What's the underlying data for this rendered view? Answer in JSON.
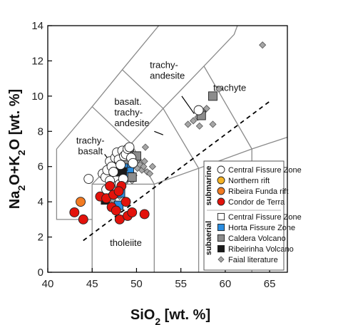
{
  "chart_data": {
    "type": "scatter",
    "x_axis": {
      "label_parts": [
        {
          "t": "SiO"
        },
        {
          "t": "2",
          "sub": true
        },
        {
          "t": " [wt. %]"
        }
      ],
      "range": [
        40,
        67
      ],
      "ticks": [
        40,
        45,
        50,
        55,
        60,
        65
      ]
    },
    "y_axis": {
      "label_parts": [
        {
          "t": "Na"
        },
        {
          "t": "2",
          "sub": true
        },
        {
          "t": "O+K"
        },
        {
          "t": "2",
          "sub": true
        },
        {
          "t": "O [wt. %]"
        }
      ],
      "range": [
        0,
        14
      ],
      "ticks": [
        0,
        2,
        4,
        6,
        8,
        10,
        12,
        14
      ]
    },
    "tas_field_lines": [
      [
        [
          41,
          7
        ],
        [
          41,
          3
        ],
        [
          45,
          3
        ]
      ],
      [
        [
          45,
          0
        ],
        [
          45,
          5
        ],
        [
          52,
          5
        ],
        [
          52,
          0
        ]
      ],
      [
        [
          45,
          5
        ],
        [
          49.4,
          7.3
        ],
        [
          53,
          9.3
        ],
        [
          57.6,
          11.7
        ],
        [
          61,
          13.5
        ],
        [
          63,
          16.2
        ]
      ],
      [
        [
          49.4,
          7.3
        ],
        [
          52,
          5
        ]
      ],
      [
        [
          53,
          9.3
        ],
        [
          57,
          5.9
        ],
        [
          63,
          7
        ],
        [
          69,
          8
        ]
      ],
      [
        [
          57.6,
          11.7
        ],
        [
          63,
          7
        ]
      ],
      [
        [
          52,
          5
        ],
        [
          57,
          5.9
        ],
        [
          57,
          0
        ]
      ],
      [
        [
          63,
          7
        ],
        [
          63,
          0
        ]
      ],
      [
        [
          41,
          7
        ],
        [
          45,
          9.4
        ],
        [
          48.4,
          11.5
        ],
        [
          52.5,
          14
        ]
      ],
      [
        [
          45,
          9.4
        ],
        [
          49.4,
          7.3
        ]
      ],
      [
        [
          48.4,
          11.5
        ],
        [
          53,
          9.3
        ]
      ]
    ],
    "alkaline_divide": [
      [
        44,
        1.8
      ],
      [
        65,
        9.7
      ]
    ],
    "field_labels": [
      {
        "lines": [
          "trachyte"
        ],
        "x": 60.5,
        "y": 10.3,
        "anchor": "middle"
      },
      {
        "lines": [
          "trachy-",
          "andesite"
        ],
        "x": 51.5,
        "y": 11.6,
        "anchor": "start"
      },
      {
        "lines": [
          "basalt.",
          "trachy-",
          "andesite"
        ],
        "x": 47.5,
        "y": 9.5,
        "anchor": "start"
      },
      {
        "lines": [
          "trachy-",
          "basalt"
        ],
        "x": 44.8,
        "y": 7.3,
        "anchor": "middle"
      },
      {
        "lines": [
          "tholeiite"
        ],
        "x": 48.8,
        "y": 1.5,
        "anchor": "middle"
      }
    ],
    "field_label_pointers": [
      [
        [
          55.1,
          10.0
        ],
        [
          56.5,
          9.0
        ]
      ],
      [
        [
          52.0,
          8.0
        ],
        [
          53.0,
          7.8
        ]
      ],
      [
        [
          46.4,
          6.7
        ],
        [
          47.3,
          6.1
        ]
      ]
    ],
    "series": [
      {
        "name": "Central Fissure Zone",
        "group": "submarine",
        "marker": "circle",
        "color": "#ffffff",
        "points": [
          [
            44.6,
            5.3
          ],
          [
            46.2,
            5.6
          ],
          [
            46.5,
            5.4
          ],
          [
            46.7,
            5.8
          ],
          [
            47.0,
            6.3
          ],
          [
            47.2,
            6.0
          ],
          [
            47.4,
            5.7
          ],
          [
            47.6,
            6.5
          ],
          [
            47.8,
            6.8
          ],
          [
            48.0,
            6.4
          ],
          [
            48.2,
            6.1
          ],
          [
            48.4,
            6.9
          ],
          [
            48.6,
            6.6
          ],
          [
            48.8,
            6.7
          ],
          [
            49.0,
            7.0
          ],
          [
            49.2,
            7.1
          ],
          [
            49.4,
            6.5
          ],
          [
            49.6,
            6.2
          ],
          [
            47.4,
            4.9
          ],
          [
            47.8,
            4.6
          ],
          [
            48.1,
            5.0
          ],
          [
            47.0,
            5.2
          ],
          [
            46.6,
            4.7
          ],
          [
            48.5,
            5.3
          ],
          [
            57.0,
            9.2
          ]
        ]
      },
      {
        "name": "Northern rift",
        "group": "submarine",
        "marker": "circle",
        "color": "#f5b325",
        "points": []
      },
      {
        "name": "Ribeira Funda rift",
        "group": "submarine",
        "marker": "circle",
        "color": "#f27b22",
        "points": [
          [
            43.7,
            4.0
          ]
        ]
      },
      {
        "name": "Condor de Terra",
        "group": "submarine",
        "marker": "circle",
        "color": "#e3120b",
        "points": [
          [
            43.0,
            3.4
          ],
          [
            44.0,
            3.0
          ],
          [
            45.9,
            4.3
          ],
          [
            46.6,
            4.2
          ],
          [
            47.4,
            4.4
          ],
          [
            48.3,
            4.9
          ],
          [
            47.0,
            4.9
          ],
          [
            47.2,
            3.7
          ],
          [
            47.7,
            3.5
          ],
          [
            48.1,
            3.0
          ],
          [
            49.0,
            3.2
          ],
          [
            49.5,
            3.4
          ],
          [
            50.9,
            3.3
          ],
          [
            48.8,
            4.0
          ],
          [
            48.0,
            4.6
          ]
        ]
      },
      {
        "name": "Central Fissure Zone",
        "group": "subaerial",
        "marker": "square",
        "color": "#ffffff",
        "points": []
      },
      {
        "name": "Horta Fissure Zone",
        "group": "subaerial",
        "marker": "square",
        "color": "#2b8de0",
        "points": [
          [
            48.0,
            3.8
          ],
          [
            48.2,
            4.5
          ],
          [
            48.6,
            5.6
          ],
          [
            49.2,
            5.9
          ],
          [
            49.0,
            6.2
          ],
          [
            48.5,
            6.0
          ]
        ]
      },
      {
        "name": "Caldera Volcano",
        "group": "subaerial",
        "marker": "square",
        "color": "#8c8c8c",
        "points": [
          [
            49.2,
            6.9
          ],
          [
            48.8,
            6.4
          ],
          [
            50.0,
            6.6
          ],
          [
            49.5,
            5.4
          ],
          [
            57.3,
            8.9
          ],
          [
            58.6,
            10.0
          ]
        ]
      },
      {
        "name": "Ribeirinha Volcano",
        "group": "subaerial",
        "marker": "square",
        "color": "#1a1a1a",
        "points": [
          [
            46.5,
            4.1
          ],
          [
            47.5,
            5.7
          ],
          [
            47.8,
            6.1
          ],
          [
            48.4,
            5.7
          ]
        ]
      },
      {
        "name": "Faial literature",
        "group": "subaerial",
        "marker": "diamond",
        "color": "#a6a6a6",
        "points": [
          [
            46.0,
            5.6
          ],
          [
            46.9,
            5.2
          ],
          [
            47.1,
            4.8
          ],
          [
            47.3,
            4.1
          ],
          [
            47.9,
            3.6
          ],
          [
            48.1,
            4.3
          ],
          [
            48.7,
            5.1
          ],
          [
            49.2,
            5.6
          ],
          [
            49.5,
            5.2
          ],
          [
            49.7,
            5.5
          ],
          [
            50.1,
            5.9
          ],
          [
            50.2,
            6.4
          ],
          [
            50.4,
            6.1
          ],
          [
            50.6,
            5.8
          ],
          [
            50.8,
            6.0
          ],
          [
            51.0,
            7.1
          ],
          [
            50.9,
            6.3
          ],
          [
            51.2,
            5.7
          ],
          [
            51.5,
            5.6
          ],
          [
            51.8,
            6.0
          ],
          [
            56.9,
            8.8
          ],
          [
            57.5,
            9.1
          ],
          [
            57.9,
            9.3
          ],
          [
            56.4,
            8.6
          ],
          [
            55.8,
            8.4
          ],
          [
            58.6,
            8.4
          ],
          [
            59.3,
            10.4
          ],
          [
            64.2,
            12.9
          ],
          [
            57.1,
            8.3
          ]
        ]
      }
    ],
    "legend": {
      "groups": [
        {
          "label": "submarine",
          "entries": [
            0,
            1,
            2,
            3
          ]
        },
        {
          "label": "subaerial",
          "entries": [
            4,
            5,
            6,
            7,
            8
          ]
        }
      ]
    }
  }
}
